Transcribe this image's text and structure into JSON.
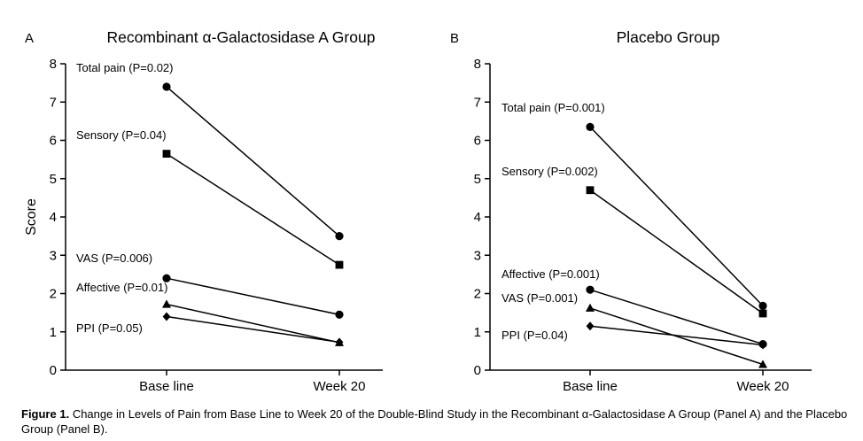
{
  "chart_data": [
    {
      "type": "line",
      "panel_letter": "A",
      "title": "Recombinant α-Galactosidase A Group",
      "xlabel": "",
      "ylabel": "Score",
      "categories": [
        "Base line",
        "Week 20"
      ],
      "ylim": [
        0,
        8
      ],
      "yticks": [
        "0",
        "1",
        "2",
        "3",
        "4",
        "5",
        "6",
        "7",
        "8"
      ],
      "series": [
        {
          "name": "Total pain (P=0.02)",
          "marker": "circle",
          "values": [
            7.4,
            3.5
          ]
        },
        {
          "name": "Sensory (P=0.04)",
          "marker": "square",
          "values": [
            5.65,
            2.75
          ]
        },
        {
          "name": "VAS (P=0.006)",
          "marker": "circle",
          "values": [
            2.4,
            1.45
          ]
        },
        {
          "name": "Affective (P=0.01)",
          "marker": "triangle",
          "values": [
            1.72,
            0.72
          ]
        },
        {
          "name": "PPI (P=0.05)",
          "marker": "diamond",
          "values": [
            1.4,
            0.73
          ]
        }
      ]
    },
    {
      "type": "line",
      "panel_letter": "B",
      "title": "Placebo Group",
      "xlabel": "",
      "ylabel": "",
      "categories": [
        "Base line",
        "Week 20"
      ],
      "ylim": [
        0,
        8
      ],
      "yticks": [
        "0",
        "1",
        "2",
        "3",
        "4",
        "5",
        "6",
        "7",
        "8"
      ],
      "series": [
        {
          "name": "Total pain (P=0.001)",
          "marker": "circle",
          "values": [
            6.35,
            1.68
          ]
        },
        {
          "name": "Sensory (P=0.002)",
          "marker": "square",
          "values": [
            4.7,
            1.48
          ]
        },
        {
          "name": "Affective (P=0.001)",
          "marker": "circle",
          "values": [
            2.1,
            0.68
          ]
        },
        {
          "name": "VAS (P=0.001)",
          "marker": "triangle",
          "values": [
            1.62,
            0.15
          ]
        },
        {
          "name": "PPI (P=0.04)",
          "marker": "diamond",
          "values": [
            1.15,
            0.66
          ]
        }
      ]
    }
  ],
  "caption": {
    "label": "Figure 1.",
    "text": "Change in Levels of Pain from Base Line to Week 20 of the Double-Blind Study in the Recombinant α-Galactosidase A Group (Panel A) and the Placebo Group (Panel B)."
  }
}
